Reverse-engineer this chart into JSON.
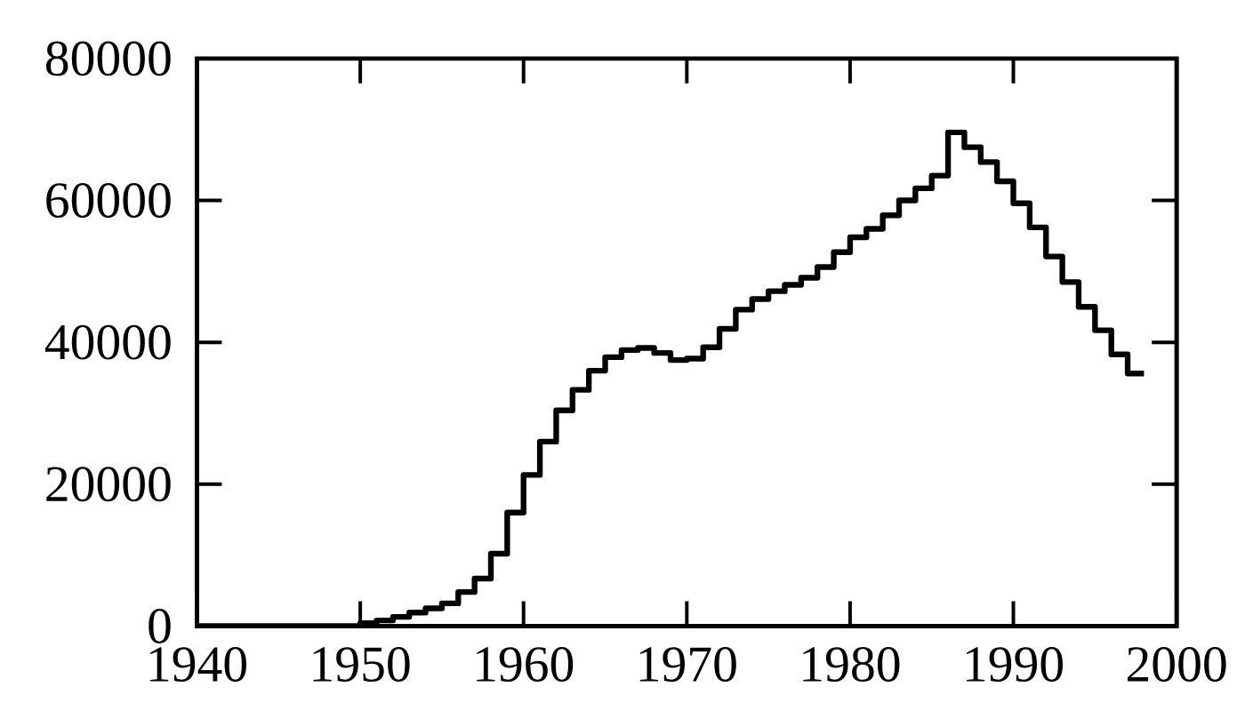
{
  "chart_data": {
    "type": "step",
    "color": "#000000",
    "x": [
      1940,
      1941,
      1942,
      1943,
      1944,
      1945,
      1946,
      1947,
      1948,
      1949,
      1950,
      1951,
      1952,
      1953,
      1954,
      1955,
      1956,
      1957,
      1958,
      1959,
      1960,
      1961,
      1962,
      1963,
      1964,
      1965,
      1966,
      1967,
      1968,
      1969,
      1970,
      1971,
      1972,
      1973,
      1974,
      1975,
      1976,
      1977,
      1978,
      1979,
      1980,
      1981,
      1982,
      1983,
      1984,
      1985,
      1986,
      1987,
      1988,
      1989,
      1990,
      1991,
      1992,
      1993,
      1994,
      1995,
      1996,
      1997,
      1998
    ],
    "values": [
      0,
      0,
      0,
      0,
      0,
      0,
      0,
      0,
      0,
      0,
      400,
      800,
      1300,
      1900,
      2500,
      3200,
      4800,
      6700,
      10200,
      16000,
      21300,
      26000,
      30400,
      33300,
      36000,
      37900,
      38900,
      39200,
      38500,
      37500,
      37700,
      39300,
      41900,
      44600,
      46100,
      47200,
      48100,
      49100,
      50600,
      52700,
      54800,
      56000,
      57900,
      60000,
      61700,
      63500,
      69600,
      67500,
      65400,
      62700,
      59600,
      56200,
      52100,
      48500,
      45000,
      41700,
      38300,
      35600,
      35600
    ],
    "xlim": [
      1940,
      2000
    ],
    "xticks": [
      1940,
      1950,
      1960,
      1970,
      1980,
      1990,
      2000
    ],
    "ylim": [
      0,
      80000
    ],
    "yticks": [
      0,
      20000,
      40000,
      60000,
      80000
    ],
    "grid": false,
    "marker": "none",
    "line_style": "solid"
  }
}
